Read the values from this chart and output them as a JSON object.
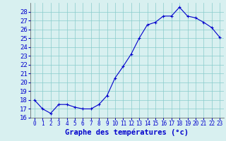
{
  "x": [
    0,
    1,
    2,
    3,
    4,
    5,
    6,
    7,
    8,
    9,
    10,
    11,
    12,
    13,
    14,
    15,
    16,
    17,
    18,
    19,
    20,
    21,
    22,
    23
  ],
  "y": [
    18.0,
    17.0,
    16.5,
    17.5,
    17.5,
    17.2,
    17.0,
    17.0,
    17.5,
    18.5,
    20.5,
    21.8,
    23.2,
    25.0,
    26.5,
    26.8,
    27.5,
    27.5,
    28.5,
    27.5,
    27.3,
    26.8,
    26.2,
    25.1
  ],
  "xlabel": "Graphe des températures (°c)",
  "ylim": [
    16,
    29
  ],
  "xlim": [
    -0.5,
    23.5
  ],
  "yticks": [
    16,
    17,
    18,
    19,
    20,
    21,
    22,
    23,
    24,
    25,
    26,
    27,
    28
  ],
  "xticks": [
    0,
    1,
    2,
    3,
    4,
    5,
    6,
    7,
    8,
    9,
    10,
    11,
    12,
    13,
    14,
    15,
    16,
    17,
    18,
    19,
    20,
    21,
    22,
    23
  ],
  "line_color": "#0000cc",
  "marker_color": "#0000cc",
  "bg_color": "#d8f0f0",
  "grid_color": "#88cccc",
  "axis_label_color": "#0000cc",
  "tick_color": "#0000cc",
  "xlabel_fontsize": 7.5,
  "ytick_fontsize": 6.5,
  "xtick_fontsize": 5.5
}
